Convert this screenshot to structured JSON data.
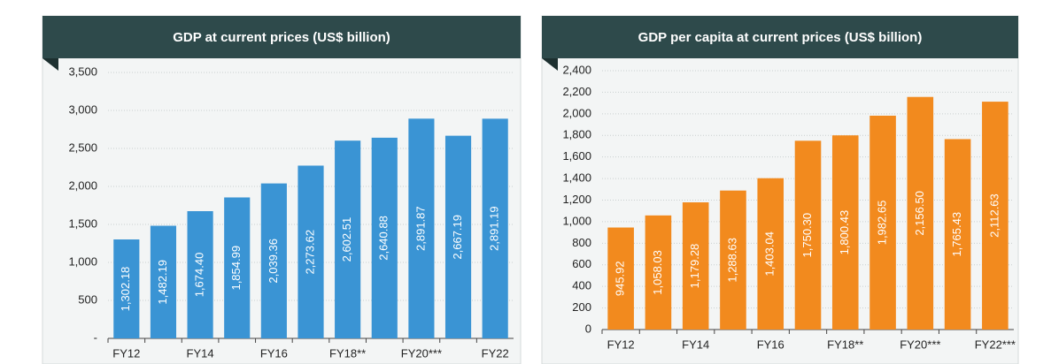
{
  "chart_data": [
    {
      "type": "bar",
      "title": "GDP at current prices (US$ billion)",
      "categories": [
        "FY12",
        null,
        "FY14",
        null,
        "FY16",
        null,
        "FY18**",
        null,
        "FY20***",
        null,
        "FY22"
      ],
      "values": [
        1302.18,
        1482.19,
        1674.4,
        1854.99,
        2039.36,
        2273.62,
        2602.51,
        2640.88,
        2891.87,
        2667.19,
        2891.19
      ],
      "value_labels": [
        "1,302.18",
        "1,482.19",
        "1,674.40",
        "1,854.99",
        "2,039.36",
        "2,273.62",
        "2,602.51",
        "2,640.88",
        "2,891.87",
        "2,667.19",
        "2,891.19"
      ],
      "color": "#3a94d4",
      "ylim": [
        0,
        3500
      ],
      "yticks": [
        {
          "value": 0,
          "label": "-"
        },
        500,
        {
          "value": 1000,
          "label": "1,000"
        },
        {
          "value": 1500,
          "label": "1,500"
        },
        {
          "value": 2000,
          "label": "2,000"
        },
        {
          "value": 2500,
          "label": "2,500"
        },
        {
          "value": 3000,
          "label": "3,000"
        },
        {
          "value": 3500,
          "label": "3,500"
        }
      ],
      "grid": true
    },
    {
      "type": "bar",
      "title": "GDP per capita at current prices (US$ billion)",
      "categories": [
        "FY12",
        null,
        "FY14",
        null,
        "FY16",
        null,
        "FY18**",
        null,
        "FY20***",
        null,
        "FY22***"
      ],
      "values": [
        945.92,
        1058.03,
        1179.28,
        1288.63,
        1403.04,
        1750.3,
        1800.43,
        1982.65,
        2156.5,
        1765.43,
        2112.63
      ],
      "value_labels": [
        "945.92",
        "1,058.03",
        "1,179.28",
        "1,288.63",
        "1,403.04",
        "1,750.30",
        "1,800.43",
        "1,982.65",
        "2,156.50",
        "1,765.43",
        "2,112.63"
      ],
      "color": "#f28a1e",
      "ylim": [
        0,
        2400
      ],
      "yticks": [
        0,
        200,
        400,
        600,
        800,
        {
          "value": 1000,
          "label": "1,000"
        },
        {
          "value": 1200,
          "label": "1,200"
        },
        {
          "value": 1400,
          "label": "1,400"
        },
        {
          "value": 1600,
          "label": "1,600"
        },
        {
          "value": 1800,
          "label": "1,800"
        },
        {
          "value": 2000,
          "label": "2,000"
        },
        {
          "value": 2200,
          "label": "2,200"
        },
        {
          "value": 2400,
          "label": "2,400"
        }
      ],
      "grid": true
    }
  ]
}
